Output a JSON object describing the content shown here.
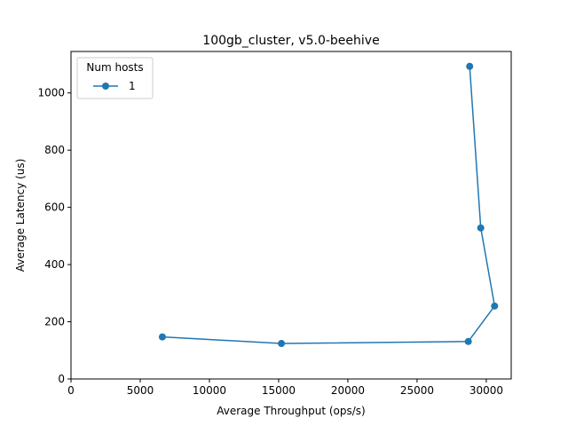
{
  "chart_data": {
    "type": "line",
    "title": "100gb_cluster, v5.0-beehive",
    "xlabel": "Average Throughput (ops/s)",
    "ylabel": "Average Latency (us)",
    "xlim": [
      0,
      31800
    ],
    "ylim": [
      0,
      1145
    ],
    "xticks": [
      0,
      5000,
      10000,
      15000,
      20000,
      25000,
      30000
    ],
    "yticks": [
      0,
      200,
      400,
      600,
      800,
      1000
    ],
    "grid": false,
    "legend": {
      "title": "Num hosts",
      "placement": "top-left"
    },
    "series": [
      {
        "name": "1",
        "color": "#1f77b4",
        "marker": "circle",
        "x": [
          6600,
          15200,
          28700,
          30600,
          29600,
          28800
        ],
        "y": [
          147,
          124,
          131,
          255,
          528,
          1093
        ]
      }
    ]
  }
}
